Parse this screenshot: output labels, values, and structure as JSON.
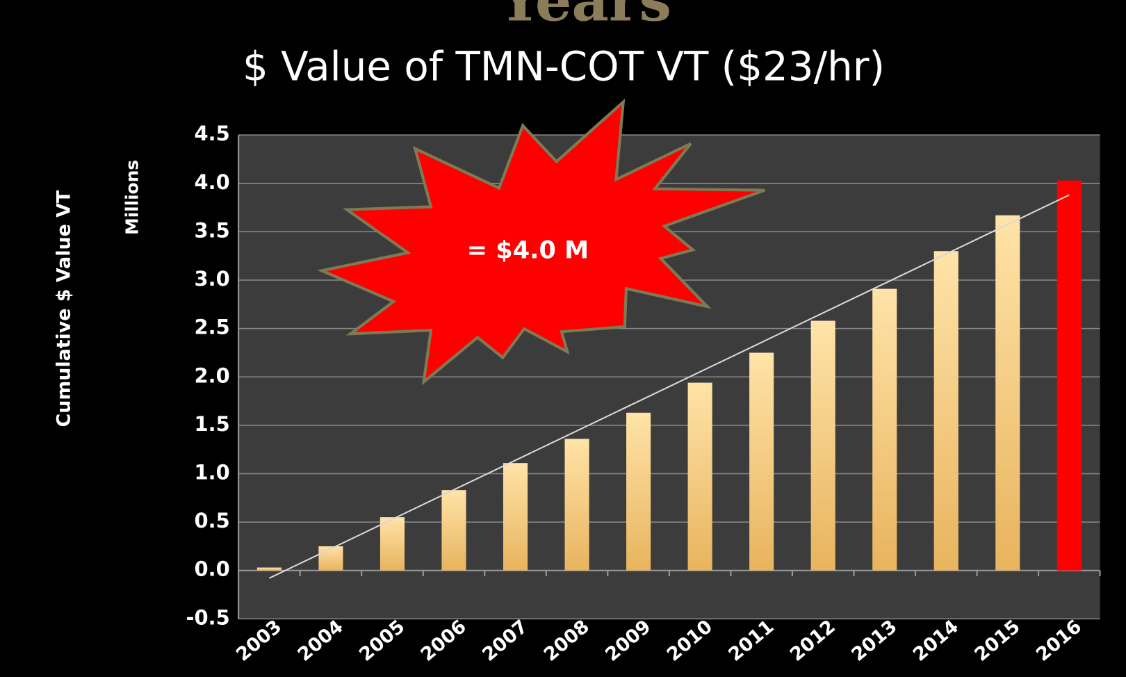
{
  "chart_data": {
    "type": "bar",
    "overtitle": "Years",
    "title": "$ Value of TMN-COT VT ($23/hr)",
    "y_label": "Cumulative $ Value VT",
    "y_unit_label": "Millions",
    "annotation": "= $4.0 M",
    "categories": [
      "2003",
      "2004",
      "2005",
      "2006",
      "2007",
      "2008",
      "2009",
      "2010",
      "2011",
      "2012",
      "2013",
      "2014",
      "2015",
      "2016"
    ],
    "values": [
      0.03,
      0.25,
      0.55,
      0.83,
      1.11,
      1.36,
      1.63,
      1.94,
      2.25,
      2.58,
      2.91,
      3.3,
      3.67,
      4.03
    ],
    "colors": [
      "#f0c878",
      "#f0c878",
      "#f0c878",
      "#f0c878",
      "#f0c878",
      "#f0c878",
      "#f0c878",
      "#f0c878",
      "#f0c878",
      "#f0c878",
      "#f0c878",
      "#f0c878",
      "#f0c878",
      "#ff0000"
    ],
    "trend": [
      -0.08,
      3.88
    ],
    "trend_color": "#d8d8d8",
    "ylim": [
      -0.5,
      4.5
    ],
    "yticks": [
      -0.5,
      {
        "value": 0,
        "label": "0.0"
      },
      0.5,
      {
        "value": 1,
        "label": "1.0"
      },
      1.5,
      {
        "value": 2,
        "label": "2.0"
      },
      2.5,
      {
        "value": 3,
        "label": "3.0"
      },
      3.5,
      {
        "value": 4,
        "label": "4.0"
      },
      4.5
    ],
    "grid": true
  }
}
